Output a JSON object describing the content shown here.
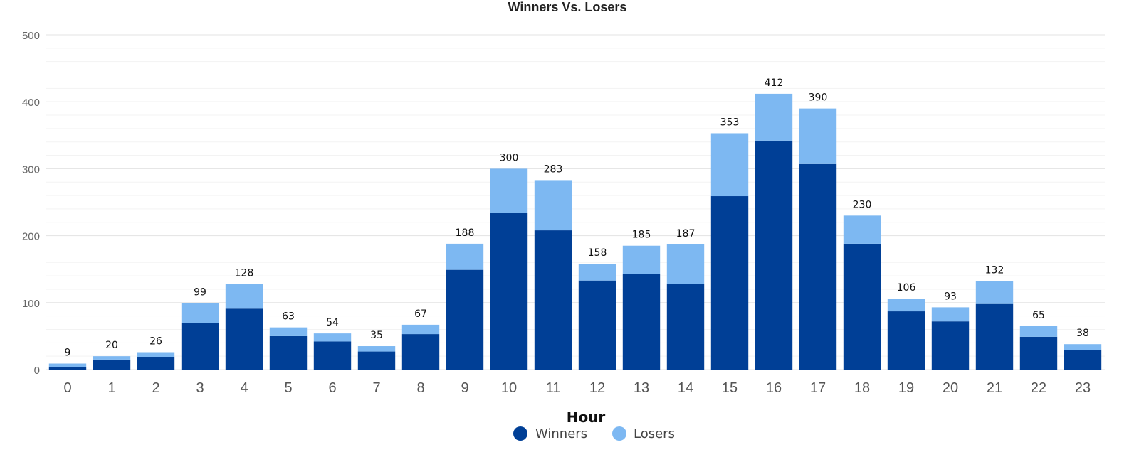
{
  "chart_data": {
    "type": "bar",
    "stacked": true,
    "title": "Winners Vs. Losers",
    "xlabel": "Hour",
    "ylabel": "",
    "ylim": [
      0,
      500
    ],
    "yticks": [
      0,
      100,
      200,
      300,
      400,
      500
    ],
    "grid": true,
    "legend_position": "bottom",
    "categories": [
      "0",
      "1",
      "2",
      "3",
      "4",
      "5",
      "6",
      "7",
      "8",
      "9",
      "10",
      "11",
      "12",
      "13",
      "14",
      "15",
      "16",
      "17",
      "18",
      "19",
      "20",
      "21",
      "22",
      "23"
    ],
    "series": [
      {
        "name": "Winners",
        "color": "#003f96",
        "values": [
          4,
          15,
          19,
          70,
          91,
          50,
          42,
          27,
          53,
          149,
          234,
          208,
          133,
          143,
          128,
          259,
          342,
          307,
          188,
          87,
          72,
          98,
          49,
          29
        ]
      },
      {
        "name": "Losers",
        "color": "#7db8f2",
        "values": [
          5,
          5,
          7,
          29,
          37,
          13,
          12,
          8,
          14,
          39,
          66,
          75,
          25,
          42,
          59,
          94,
          70,
          83,
          42,
          19,
          21,
          34,
          16,
          9
        ]
      }
    ],
    "totals": [
      9,
      20,
      26,
      99,
      128,
      63,
      54,
      35,
      67,
      188,
      300,
      283,
      158,
      185,
      187,
      353,
      412,
      390,
      230,
      106,
      93,
      132,
      65,
      38
    ]
  }
}
